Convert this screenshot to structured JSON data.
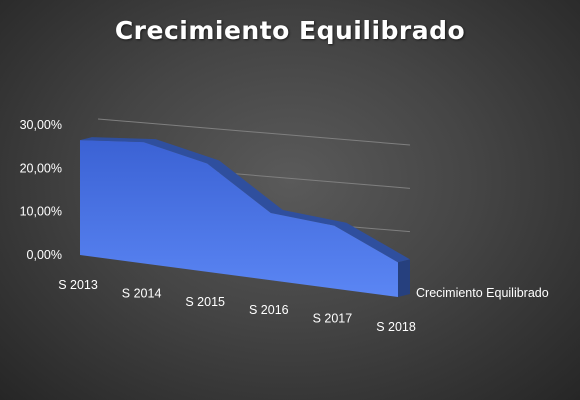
{
  "chart_data": {
    "type": "area",
    "title": "Crecimiento Equilibrado",
    "categories": [
      "S 2013",
      "S 2014",
      "S 2015",
      "S 2016",
      "S 2017",
      "S 2018"
    ],
    "series": [
      {
        "name": "Crecimiento Equilibrado",
        "values": [
          26.5,
          28.0,
          25.0,
          15.5,
          14.5,
          8.0
        ],
        "color": "#4472c4"
      }
    ],
    "ylim": [
      0,
      30
    ],
    "yticks": [
      "0,00%",
      "10,00%",
      "20,00%",
      "30,00%"
    ],
    "grid": true,
    "legend_position": "right",
    "view": "3d",
    "background": "#404040",
    "text_color": "#ffffff",
    "grid_color": "#7f7f7f"
  }
}
